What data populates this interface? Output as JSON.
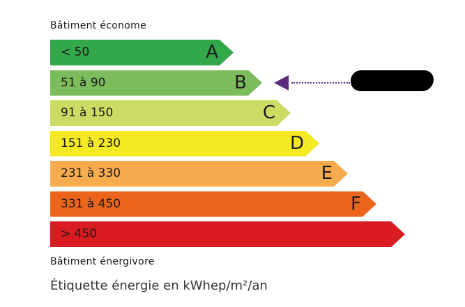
{
  "top_label": "Bâtiment économe",
  "bottom_label": "Bâtiment énergivore",
  "unit_label": "Étiquette énergie en kWhep/m²/an",
  "classes": [
    {
      "range": "< 50",
      "letter": "A",
      "color": "#33a84a"
    },
    {
      "range": "51 à 90",
      "letter": "B",
      "color": "#7cbc5c"
    },
    {
      "range": "91 à 150",
      "letter": "C",
      "color": "#cbdb64"
    },
    {
      "range": "151 à 230",
      "letter": "D",
      "color": "#f4e922"
    },
    {
      "range": "231 à 330",
      "letter": "E",
      "color": "#f6ab4e"
    },
    {
      "range": "331 à 450",
      "letter": "F",
      "color": "#eb661c"
    },
    {
      "range": "> 450",
      "letter": "",
      "color": "#d91c22"
    }
  ],
  "indicator": {
    "selected_class": "B",
    "color": "#5b2a7b"
  }
}
